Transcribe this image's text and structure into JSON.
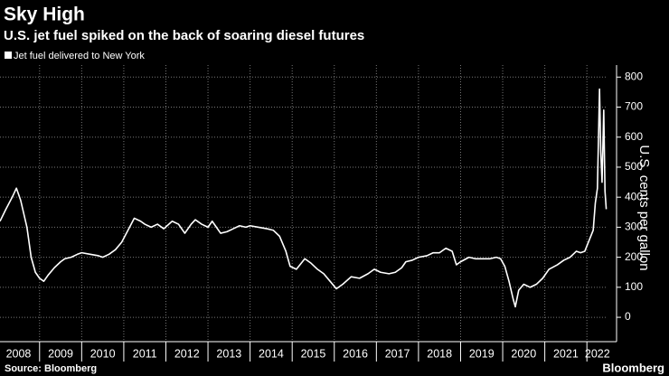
{
  "chart_data": {
    "type": "line",
    "title": "Sky High",
    "subtitle": "U.S. jet fuel spiked on the back of soaring diesel futures",
    "y_label": "U.S. cents per gallon",
    "source": "Source: Bloomberg",
    "brand": "Bloomberg",
    "legend_position": "top-left",
    "grid": true,
    "series": [
      {
        "name": "Jet fuel delivered to New York",
        "color": "#ffffff",
        "x": [
          2008.06,
          2008.2,
          2008.35,
          2008.45,
          2008.55,
          2008.7,
          2008.8,
          2008.9,
          2009.0,
          2009.1,
          2009.2,
          2009.35,
          2009.5,
          2009.6,
          2009.75,
          2009.9,
          2010.0,
          2010.2,
          2010.4,
          2010.5,
          2010.65,
          2010.8,
          2010.95,
          2011.1,
          2011.25,
          2011.4,
          2011.5,
          2011.65,
          2011.8,
          2011.95,
          2012.15,
          2012.3,
          2012.45,
          2012.6,
          2012.7,
          2012.85,
          2013.0,
          2013.1,
          2013.3,
          2013.45,
          2013.6,
          2013.75,
          2013.9,
          2014.0,
          2014.2,
          2014.4,
          2014.55,
          2014.7,
          2014.85,
          2014.95,
          2015.1,
          2015.3,
          2015.45,
          2015.6,
          2015.75,
          2015.9,
          2016.05,
          2016.2,
          2016.4,
          2016.6,
          2016.8,
          2016.95,
          2017.1,
          2017.3,
          2017.45,
          2017.6,
          2017.7,
          2017.85,
          2018.0,
          2018.2,
          2018.35,
          2018.5,
          2018.65,
          2018.8,
          2018.9,
          2019.0,
          2019.2,
          2019.35,
          2019.5,
          2019.7,
          2019.85,
          2019.95,
          2020.05,
          2020.15,
          2020.25,
          2020.3,
          2020.38,
          2020.5,
          2020.65,
          2020.8,
          2020.95,
          2021.1,
          2021.3,
          2021.45,
          2021.6,
          2021.75,
          2021.85,
          2021.95,
          2022.05,
          2022.15,
          2022.2,
          2022.25,
          2022.3,
          2022.33,
          2022.36,
          2022.4,
          2022.43,
          2022.46
        ],
        "values": [
          320,
          360,
          400,
          430,
          390,
          300,
          200,
          150,
          130,
          120,
          140,
          165,
          185,
          195,
          200,
          210,
          215,
          210,
          205,
          200,
          210,
          225,
          250,
          290,
          330,
          320,
          310,
          300,
          310,
          295,
          320,
          310,
          280,
          310,
          325,
          310,
          300,
          320,
          280,
          285,
          295,
          305,
          300,
          305,
          300,
          295,
          290,
          270,
          220,
          170,
          160,
          195,
          180,
          160,
          145,
          120,
          95,
          110,
          135,
          130,
          145,
          160,
          150,
          145,
          150,
          165,
          185,
          190,
          200,
          205,
          215,
          215,
          230,
          220,
          175,
          185,
          200,
          195,
          195,
          195,
          200,
          195,
          170,
          120,
          60,
          35,
          90,
          110,
          100,
          110,
          130,
          160,
          175,
          190,
          200,
          220,
          215,
          220,
          255,
          290,
          380,
          430,
          760,
          550,
          450,
          690,
          420,
          360
        ]
      }
    ],
    "xlim": [
      2008.06,
      2022.49
    ],
    "xgrid": [
      2009,
      2010,
      2011,
      2012,
      2013,
      2014,
      2015,
      2016,
      2017,
      2018,
      2019,
      2020,
      2021,
      2022
    ],
    "xticks": [
      {
        "value": 2008.5,
        "label": "2008"
      },
      {
        "value": 2009.5,
        "label": "2009"
      },
      {
        "value": 2010.5,
        "label": "2010"
      },
      {
        "value": 2011.5,
        "label": "2011"
      },
      {
        "value": 2012.5,
        "label": "2012"
      },
      {
        "value": 2013.5,
        "label": "2013"
      },
      {
        "value": 2014.5,
        "label": "2014"
      },
      {
        "value": 2015.5,
        "label": "2015"
      },
      {
        "value": 2016.5,
        "label": "2016"
      },
      {
        "value": 2017.5,
        "label": "2017"
      },
      {
        "value": 2018.5,
        "label": "2018"
      },
      {
        "value": 2019.5,
        "label": "2019"
      },
      {
        "value": 2020.5,
        "label": "2020"
      },
      {
        "value": 2021.5,
        "label": "2021"
      },
      {
        "value": 2022.25,
        "label": "2022"
      }
    ],
    "ylim": [
      -60,
      840
    ],
    "yticks": [
      0,
      100,
      200,
      300,
      400,
      500,
      600,
      700,
      800
    ]
  }
}
